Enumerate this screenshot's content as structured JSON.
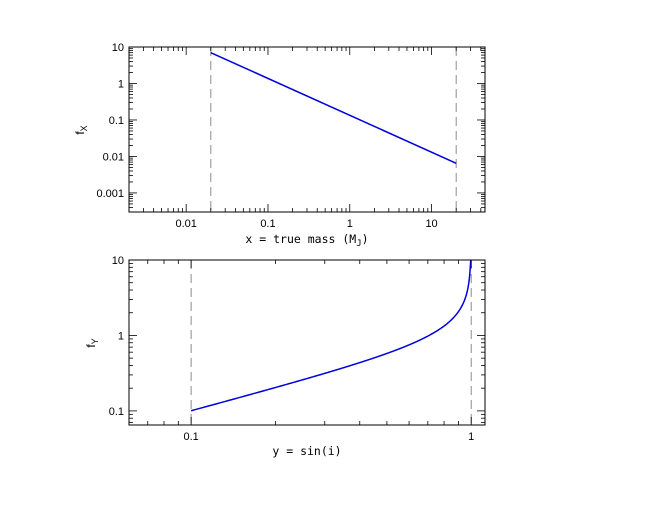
{
  "chart_data": [
    {
      "type": "line",
      "xscale": "log",
      "yscale": "log",
      "xlim": [
        0.002,
        45
      ],
      "ylim": [
        0.0003,
        10
      ],
      "xticks": [
        0.01,
        0.1,
        1,
        10
      ],
      "xtick_labels": [
        "0.01",
        "0.1",
        "1",
        "10"
      ],
      "yticks": [
        0.001,
        0.01,
        0.1,
        1,
        10
      ],
      "ytick_labels": [
        "0.001",
        "0.01",
        "0.1",
        "1",
        "10"
      ],
      "xlabel": "x = true mass (M",
      "xlabel_sub": "J",
      "xlabel_end": ")",
      "ylabel": "f",
      "ylabel_sub": "X",
      "vlines": [
        0.02,
        20
      ],
      "series": [
        {
          "x": [
            0.02,
            20
          ],
          "y": [
            7.0,
            0.0065
          ]
        }
      ],
      "color": "#0000dd",
      "grid": false
    },
    {
      "type": "line",
      "xscale": "log",
      "yscale": "log",
      "xlim": [
        0.06,
        1.12
      ],
      "ylim": [
        0.065,
        10
      ],
      "xticks": [
        0.1,
        1
      ],
      "xtick_labels": [
        "0.1",
        "1"
      ],
      "yticks": [
        0.1,
        1,
        10
      ],
      "ytick_labels": [
        "0.1",
        "1",
        "10"
      ],
      "xlabel": "y = sin(i)",
      "ylabel": "f",
      "ylabel_sub": "Y",
      "vlines": [
        0.1,
        1
      ],
      "series": [
        {
          "x_range": [
            0.1,
            0.99995
          ],
          "function": "y/sqrt(1-y^2)"
        }
      ],
      "color": "#0000dd",
      "grid": false
    }
  ]
}
